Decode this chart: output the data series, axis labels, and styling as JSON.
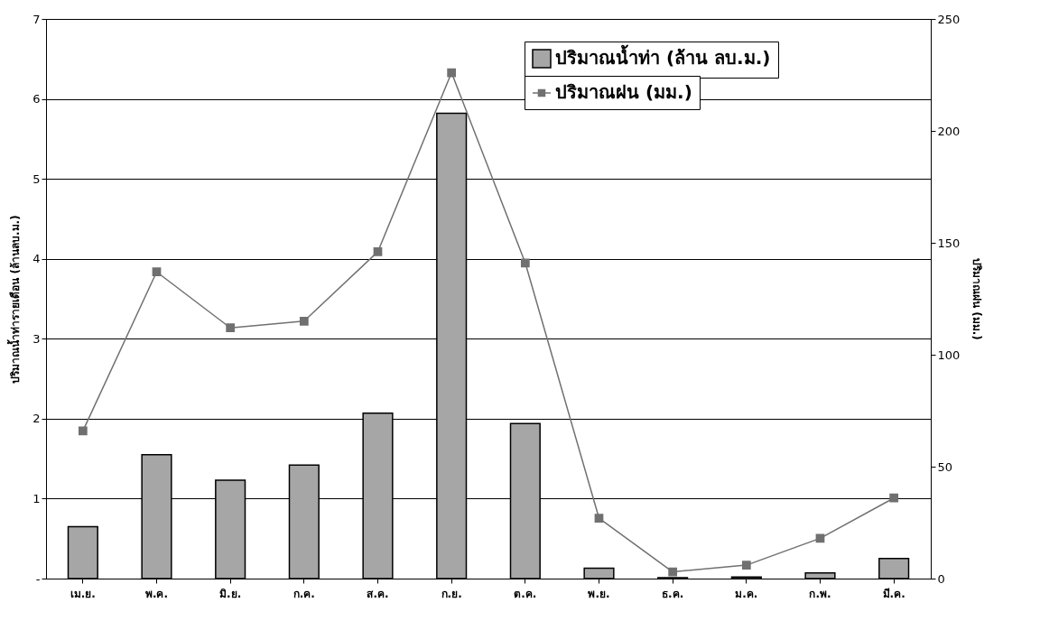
{
  "chart_data": {
    "type": "bar",
    "ylabel": "ปริมาณน้ำท่ารายเดือน (ล้านลบ.ม.)",
    "y2label": "ปริมาณฝน (มม.)",
    "categories": [
      "เม.ย.",
      "พ.ค.",
      "มิ.ย.",
      "ก.ค.",
      "ส.ค.",
      "ก.ย.",
      "ต.ค.",
      "พ.ย.",
      "ธ.ค.",
      "ม.ค.",
      "ก.พ.",
      "มี.ค."
    ],
    "series": [
      {
        "name": "ปริมาณน้ำท่า (ล้าน ลบ.ม.)",
        "color": "#a6a6a6",
        "values": [
          0.65,
          1.55,
          1.23,
          1.42,
          2.07,
          5.82,
          1.94,
          0.13,
          0.01,
          0.02,
          0.07,
          0.25
        ]
      },
      {
        "name": "ปริมาณฝน (มม.)",
        "type": "line",
        "axis": "y2",
        "color": "#707070",
        "marker": "square",
        "values": [
          66,
          137,
          112,
          115,
          146,
          226,
          141,
          27,
          3,
          6,
          18,
          36
        ]
      }
    ],
    "ylim": [
      0,
      7
    ],
    "yticks": [
      {
        "value": 0,
        "label": "-"
      },
      1,
      2,
      3,
      4,
      5,
      6,
      7
    ],
    "y2lim": [
      0,
      250
    ],
    "y2ticks": [
      0,
      50,
      100,
      150,
      200,
      250
    ],
    "grid": "y",
    "legend": "top right"
  }
}
